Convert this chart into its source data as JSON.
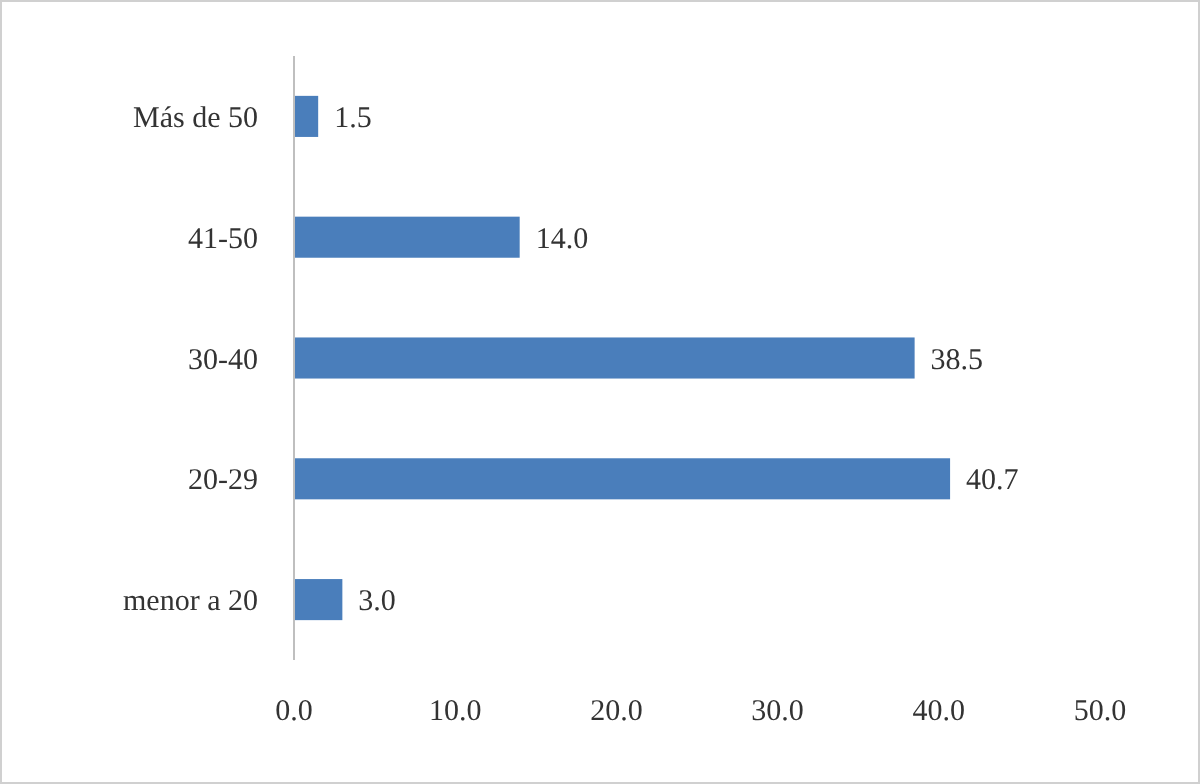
{
  "chart_data": {
    "type": "bar",
    "orientation": "horizontal",
    "categories": [
      "Más de 50",
      "41-50",
      "30-40",
      "20-29",
      "menor a 20"
    ],
    "values": [
      1.5,
      14.0,
      38.5,
      40.7,
      3.0
    ],
    "value_labels": [
      "1.5",
      "14.0",
      "38.5",
      "40.7",
      "3.0"
    ],
    "color": "#4a7ebb",
    "xlim": [
      0,
      50
    ],
    "xticks": [
      {
        "value": 0,
        "label": "0.0"
      },
      {
        "value": 10,
        "label": "10.0"
      },
      {
        "value": 20,
        "label": "20.0"
      },
      {
        "value": 30,
        "label": "30.0"
      },
      {
        "value": 40,
        "label": "40.0"
      },
      {
        "value": 50,
        "label": "50.0"
      }
    ],
    "grid": false
  }
}
